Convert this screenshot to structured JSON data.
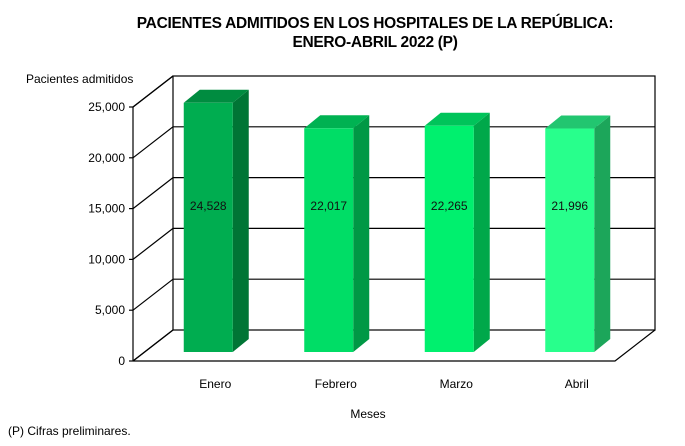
{
  "chart_data": {
    "type": "bar",
    "title": "PACIENTES ADMITIDOS EN LOS HOSPITALES DE LA REPÚBLICA:",
    "subtitle": "ENERO-ABRIL 2022 (P)",
    "xlabel": "Meses",
    "ylabel": "Pacientes admitidos",
    "categories": [
      "Enero",
      "Febrero",
      "Marzo",
      "Abril"
    ],
    "values": [
      24528,
      22017,
      22265,
      21996
    ],
    "value_labels": [
      "24,528",
      "22,017",
      "22,265",
      "21,996"
    ],
    "ylim": [
      0,
      25000
    ],
    "yticks": [
      0,
      5000,
      10000,
      15000,
      20000,
      25000
    ],
    "ytick_labels": [
      "0",
      "5,000",
      "10,000",
      "15,000",
      "20,000",
      "25,000"
    ],
    "grid": true,
    "style": "3d-column",
    "bar_colors": [
      {
        "front": "#00AD50",
        "side": "#007535",
        "top": "#008C40"
      },
      {
        "front": "#00DD66",
        "side": "#009845",
        "top": "#00B252"
      },
      {
        "front": "#00F06E",
        "side": "#00A84A",
        "top": "#00C45A"
      },
      {
        "front": "#28FF8C",
        "side": "#1CA65A",
        "top": "#22C670"
      }
    ]
  },
  "footnote": "(P) Cifras  preliminares."
}
